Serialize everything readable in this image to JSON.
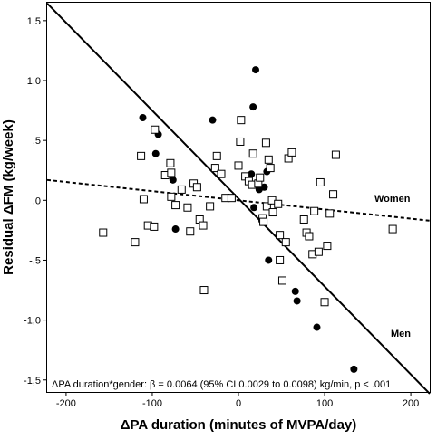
{
  "chart_data": {
    "type": "scatter",
    "xlabel": "ΔPA duration (minutes of MVPA/day)",
    "ylabel": "Residual ΔFM (kg/week)",
    "xlim": [
      -222,
      222
    ],
    "ylim": [
      -1.6,
      1.65
    ],
    "x_ticks": [
      -200,
      -100,
      0,
      100,
      200
    ],
    "x_tick_labels": [
      "-200",
      "-100",
      "0",
      "100",
      "200"
    ],
    "y_ticks": [
      1.5,
      1.0,
      0.5,
      0.0,
      -0.5,
      -1.0,
      -1.5
    ],
    "y_tick_labels": [
      "1,5",
      "1,0",
      ",5",
      ",0",
      "-,5",
      "-1,0",
      "-1,5"
    ],
    "annotation": "ΔPA duration*gender: β = 0.0064 (95% CI 0.0029 to 0.0098) kg/min, p < .001",
    "series": [
      {
        "name": "Men",
        "marker": "filled-circle",
        "line_style": "solid",
        "fit_line": {
          "x": [
            -222,
            222
          ],
          "y": [
            1.645,
            -1.615
          ]
        },
        "points": [
          [
            -111,
            0.69
          ],
          [
            -96,
            0.39
          ],
          [
            -93,
            0.55
          ],
          [
            -76,
            0.17
          ],
          [
            -73,
            -0.24
          ],
          [
            -30,
            0.67
          ],
          [
            17,
            0.78
          ],
          [
            20,
            1.09
          ],
          [
            24,
            0.09
          ],
          [
            30,
            0.11
          ],
          [
            15,
            0.22
          ],
          [
            33,
            0.24
          ],
          [
            18,
            -0.06
          ],
          [
            35,
            -0.5
          ],
          [
            66,
            -0.76
          ],
          [
            68,
            -0.84
          ],
          [
            91,
            -1.06
          ],
          [
            134,
            -1.41
          ]
        ]
      },
      {
        "name": "Women",
        "marker": "open-square",
        "line_style": "dashed",
        "fit_line": {
          "x": [
            -222,
            222
          ],
          "y": [
            0.17,
            -0.17
          ]
        },
        "points": [
          [
            -157,
            -0.27
          ],
          [
            -120,
            -0.35
          ],
          [
            -113,
            0.37
          ],
          [
            -97,
            0.59
          ],
          [
            -110,
            0.01
          ],
          [
            -105,
            -0.21
          ],
          [
            -98,
            -0.22
          ],
          [
            -85,
            0.21
          ],
          [
            -79,
            0.31
          ],
          [
            -78,
            0.23
          ],
          [
            -78,
            0.03
          ],
          [
            -73,
            -0.04
          ],
          [
            -66,
            0.09
          ],
          [
            -59,
            -0.06
          ],
          [
            -56,
            -0.26
          ],
          [
            -52,
            0.14
          ],
          [
            -48,
            0.11
          ],
          [
            -45,
            -0.16
          ],
          [
            -41,
            -0.21
          ],
          [
            -40,
            -0.75
          ],
          [
            -33,
            -0.05
          ],
          [
            -27,
            0.27
          ],
          [
            -25,
            0.37
          ],
          [
            -20,
            0.22
          ],
          [
            -15,
            0.02
          ],
          [
            -8,
            0.02
          ],
          [
            0,
            0.29
          ],
          [
            2,
            0.49
          ],
          [
            3,
            0.67
          ],
          [
            8,
            0.2
          ],
          [
            12,
            0.16
          ],
          [
            16,
            0.13
          ],
          [
            17,
            0.39
          ],
          [
            23,
            0.14
          ],
          [
            25,
            0.19
          ],
          [
            28,
            -0.15
          ],
          [
            29,
            -0.18
          ],
          [
            32,
            0.48
          ],
          [
            33,
            -0.05
          ],
          [
            35,
            0.34
          ],
          [
            37,
            0.27
          ],
          [
            39,
            0.0
          ],
          [
            40,
            -0.1
          ],
          [
            46,
            -0.03
          ],
          [
            48,
            -0.29
          ],
          [
            48,
            -0.5
          ],
          [
            51,
            -0.67
          ],
          [
            55,
            -0.35
          ],
          [
            58,
            0.35
          ],
          [
            62,
            0.4
          ],
          [
            76,
            -0.16
          ],
          [
            79,
            -0.27
          ],
          [
            82,
            -0.3
          ],
          [
            86,
            -0.45
          ],
          [
            88,
            -0.09
          ],
          [
            93,
            -0.43
          ],
          [
            95,
            0.15
          ],
          [
            100,
            -0.85
          ],
          [
            103,
            -0.38
          ],
          [
            106,
            -0.11
          ],
          [
            110,
            0.05
          ],
          [
            113,
            0.38
          ],
          [
            179,
            -0.24
          ]
        ]
      }
    ],
    "series_labels": [
      "Women",
      "Men"
    ]
  }
}
